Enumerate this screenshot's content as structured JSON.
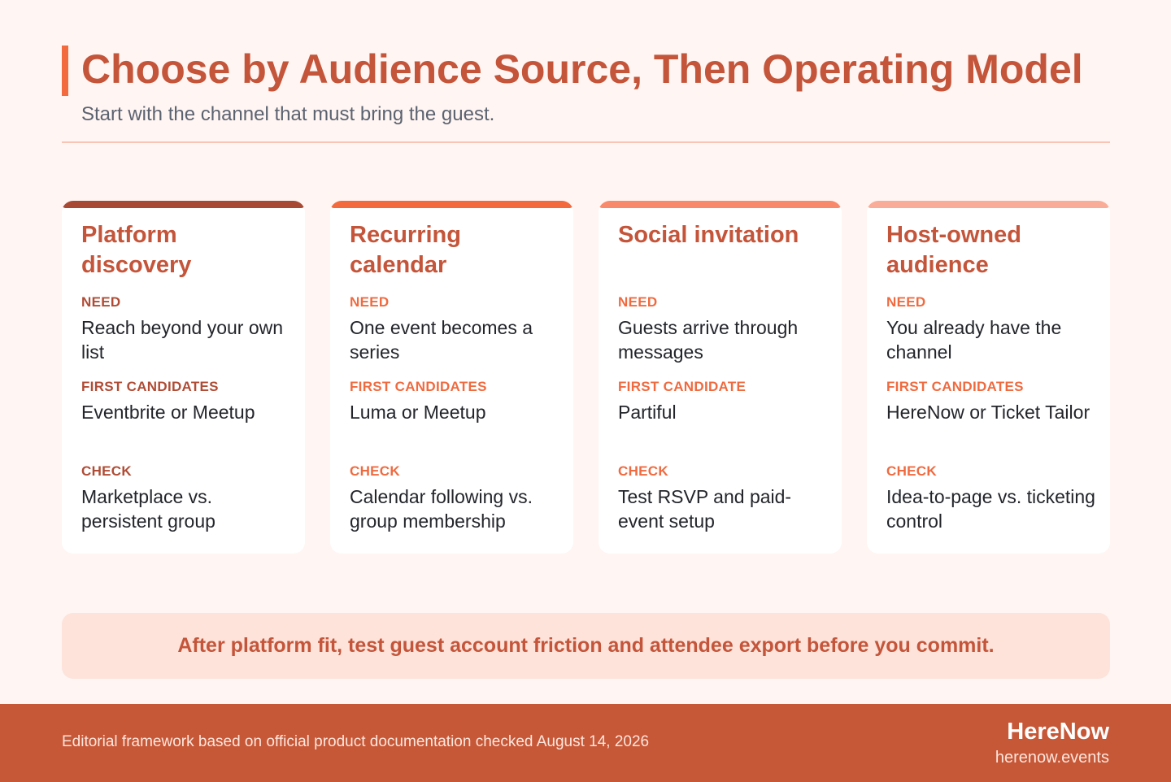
{
  "header": {
    "title": "Choose by Audience Source, Then Operating Model",
    "subtitle": "Start with the channel that must bring the guest."
  },
  "cards": [
    {
      "title": "Platform discovery",
      "accent": "#a84a33",
      "label_color": "#b04c35",
      "need_label": "NEED",
      "need": "Reach beyond your own list",
      "candidates_label": "FIRST CANDIDATES",
      "candidates": "Eventbrite or Meetup",
      "check_label": "CHECK",
      "check": "Marketplace vs. persistent group"
    },
    {
      "title": "Recurring calendar",
      "accent": "#f26a3d",
      "label_color": "#f06a3f",
      "need_label": "NEED",
      "need": "One event becomes a series",
      "candidates_label": "FIRST CANDIDATES",
      "candidates": "Luma or Meetup",
      "check_label": "CHECK",
      "check": "Calendar following vs. group membership"
    },
    {
      "title": "Social invitation",
      "accent": "#f8896b",
      "label_color": "#f06a3f",
      "need_label": "NEED",
      "need": "Guests arrive through messages",
      "candidates_label": "FIRST CANDIDATE",
      "candidates": "Partiful",
      "check_label": "CHECK",
      "check": "Test RSVP and paid-event setup"
    },
    {
      "title": "Host-owned audience",
      "accent": "#f9ad98",
      "label_color": "#f06a3f",
      "need_label": "NEED",
      "need": "You already have the channel",
      "candidates_label": "FIRST CANDIDATES",
      "candidates": "HereNow or Ticket Tailor",
      "check_label": "CHECK",
      "check": "Idea-to-page vs. ticketing control"
    }
  ],
  "callout": {
    "text": "After platform fit, test guest account friction and attendee export before you commit."
  },
  "footer": {
    "note": "Editorial framework based on official product documentation checked August 14, 2026",
    "brand": "HereNow",
    "url": "herenow.events"
  }
}
